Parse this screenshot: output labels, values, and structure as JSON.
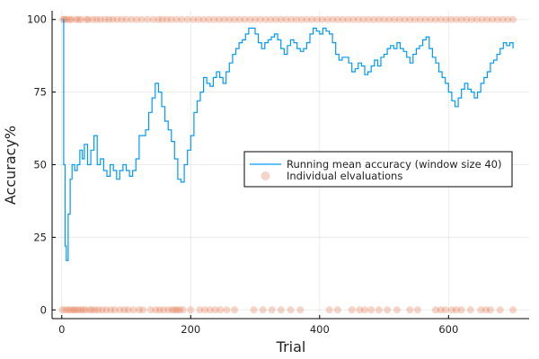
{
  "chart_data": {
    "type": "scatter",
    "xlabel": "Trial",
    "ylabel": "Accuracy%",
    "xlim": [
      -15,
      725
    ],
    "ylim": [
      -3,
      103
    ],
    "xticks": [
      0,
      200,
      400,
      600
    ],
    "yticks": [
      0,
      25,
      50,
      75,
      100
    ],
    "grid": true,
    "legend_position": "right",
    "colors": {
      "line": "#009af9",
      "points": "#e26f46"
    },
    "series": [
      {
        "name": "Running mean accuracy (window size 40)",
        "kind": "line",
        "x": [
          1,
          3,
          5,
          7,
          10,
          13,
          16,
          20,
          24,
          28,
          32,
          35,
          40,
          45,
          50,
          55,
          60,
          65,
          70,
          75,
          80,
          85,
          90,
          95,
          100,
          105,
          110,
          115,
          120,
          125,
          130,
          135,
          140,
          145,
          150,
          155,
          160,
          165,
          170,
          175,
          180,
          185,
          190,
          195,
          200,
          205,
          210,
          215,
          220,
          225,
          230,
          235,
          240,
          245,
          250,
          255,
          260,
          265,
          270,
          275,
          280,
          285,
          290,
          295,
          300,
          305,
          310,
          315,
          320,
          325,
          330,
          335,
          340,
          345,
          350,
          355,
          360,
          365,
          370,
          375,
          380,
          385,
          390,
          395,
          400,
          405,
          410,
          415,
          420,
          425,
          430,
          435,
          440,
          445,
          450,
          455,
          460,
          465,
          470,
          475,
          480,
          485,
          490,
          495,
          500,
          505,
          510,
          515,
          520,
          525,
          530,
          535,
          540,
          545,
          550,
          555,
          560,
          565,
          570,
          575,
          580,
          585,
          590,
          595,
          600,
          605,
          610,
          615,
          620,
          625,
          630,
          635,
          640,
          645,
          650,
          655,
          660,
          665,
          670,
          675,
          680,
          685,
          690,
          695,
          700
        ],
        "values": [
          100,
          50,
          22,
          17,
          33,
          45,
          50,
          48,
          50,
          55,
          52,
          57,
          50,
          55,
          60,
          50,
          52,
          48,
          46,
          50,
          48,
          45,
          48,
          50,
          48,
          46,
          48,
          52,
          60,
          60,
          62,
          68,
          73,
          78,
          75,
          70,
          65,
          62,
          58,
          52,
          45,
          44,
          50,
          55,
          60,
          68,
          72,
          75,
          80,
          78,
          77,
          80,
          82,
          80,
          78,
          82,
          85,
          88,
          90,
          92,
          93,
          95,
          97,
          97,
          95,
          92,
          90,
          92,
          93,
          94,
          95,
          93,
          90,
          88,
          91,
          93,
          92,
          90,
          89,
          90,
          92,
          95,
          97,
          96,
          95,
          97,
          96,
          95,
          92,
          88,
          86,
          87,
          87,
          85,
          82,
          83,
          85,
          84,
          81,
          82,
          84,
          86,
          84,
          87,
          88,
          90,
          91,
          90,
          92,
          90,
          89,
          87,
          85,
          88,
          90,
          91,
          93,
          94,
          90,
          87,
          85,
          82,
          80,
          78,
          75,
          72,
          70,
          73,
          76,
          78,
          76,
          75,
          73,
          75,
          78,
          80,
          82,
          85,
          86,
          88,
          90,
          92,
          91,
          92,
          90
        ]
      },
      {
        "name": "Individual elvaluations",
        "kind": "scatter",
        "opacity": 0.3,
        "x1": [
          2,
          4,
          7,
          12,
          15,
          22,
          26,
          30,
          38,
          41,
          48,
          54,
          60,
          67,
          73,
          79,
          86,
          93,
          100,
          108,
          116,
          124,
          133,
          142,
          150,
          156,
          163,
          170,
          178,
          186,
          195,
          204,
          212,
          220,
          228,
          236,
          244,
          252,
          260,
          268,
          276,
          284,
          292,
          300,
          308,
          316,
          324,
          332,
          340,
          348,
          356,
          364,
          372,
          380,
          388,
          396,
          404,
          412,
          420,
          428,
          436,
          444,
          452,
          460,
          468,
          476,
          484,
          492,
          500,
          508,
          516,
          524,
          532,
          540,
          548,
          556,
          564,
          572,
          580,
          588,
          596,
          604,
          612,
          620,
          628,
          636,
          644,
          652,
          660,
          668,
          676,
          684,
          692,
          700
        ],
        "x0": [
          1,
          6,
          10,
          14,
          18,
          21,
          25,
          29,
          33,
          37,
          43,
          47,
          52,
          57,
          63,
          69,
          76,
          82,
          90,
          97,
          103,
          111,
          120,
          126,
          138,
          146,
          152,
          158,
          165,
          171,
          175,
          179,
          183,
          188,
          200,
          214,
          222,
          230,
          238,
          246,
          256,
          268,
          298,
          312,
          326,
          340,
          355,
          370,
          415,
          428,
          450,
          462,
          470,
          480,
          492,
          505,
          520,
          540,
          552,
          580,
          588,
          595,
          605,
          612,
          620,
          634,
          650,
          658,
          665,
          680,
          700
        ]
      }
    ]
  }
}
